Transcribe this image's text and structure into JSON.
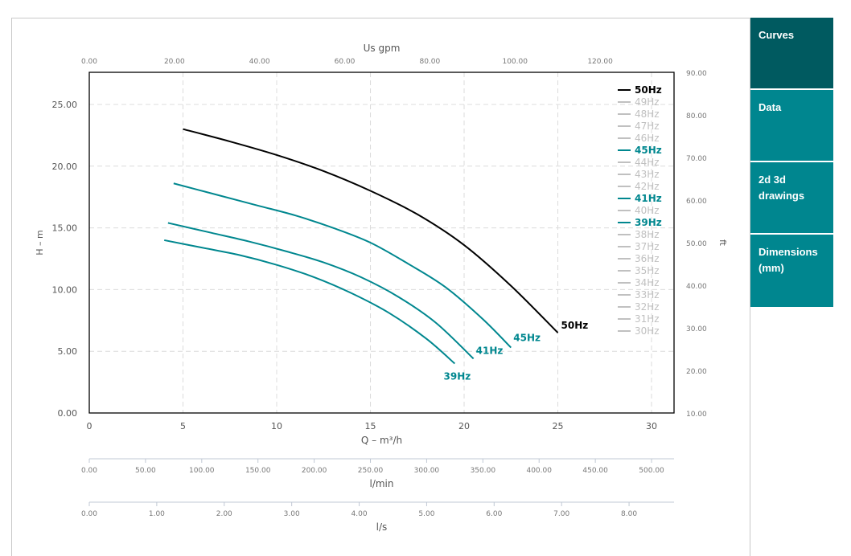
{
  "sidebar": {
    "tabs": [
      {
        "label": "Curves",
        "active": true
      },
      {
        "label": "Data",
        "active": false
      },
      {
        "label": "2d 3d drawings",
        "active": false
      },
      {
        "label": "Dimensions (mm)",
        "active": false
      }
    ]
  },
  "colors": {
    "active_curve": "#000000",
    "secondary_curve": "#00878f",
    "inactive_legend": "#c0c0c0",
    "tab_bg": "#00868f",
    "tab_active_bg": "#005a60"
  },
  "chart_data": {
    "type": "line",
    "xlabel": "Q – m³/h",
    "ylabel": "H – m",
    "xlim": [
      0,
      31.2
    ],
    "ylim": [
      0,
      27.6
    ],
    "x_ticks": [
      0,
      5,
      10,
      15,
      20,
      25,
      30
    ],
    "x_tick_labels": [
      "0",
      "5",
      "10",
      "15",
      "20",
      "25",
      "30"
    ],
    "y_ticks": [
      0,
      5,
      10,
      15,
      20,
      25
    ],
    "y_tick_labels": [
      "0.00",
      "5.00",
      "10.00",
      "15.00",
      "20.00",
      "25.00"
    ],
    "grid": true,
    "legend_position": "top-right",
    "secondary_axes": {
      "top": {
        "label": "Us gpm",
        "ticks": [
          0,
          20,
          40,
          60,
          80,
          100,
          120
        ],
        "tick_labels": [
          "0.00",
          "20.00",
          "40.00",
          "60.00",
          "80.00",
          "100.00",
          "120.00"
        ]
      },
      "right": {
        "label": "ft",
        "ticks": [
          10,
          20,
          30,
          40,
          50,
          60,
          70,
          80,
          90
        ],
        "tick_labels": [
          "10.00",
          "20.00",
          "30.00",
          "40.00",
          "50.00",
          "60.00",
          "70.00",
          "80.00",
          "90.00"
        ]
      },
      "lpm": {
        "label": "l/min",
        "ticks": [
          0,
          50,
          100,
          150,
          200,
          250,
          300,
          350,
          400,
          450,
          500
        ],
        "tick_labels": [
          "0.00",
          "50.00",
          "100.00",
          "150.00",
          "200.00",
          "250.00",
          "300.00",
          "350.00",
          "400.00",
          "450.00",
          "500.00"
        ]
      },
      "lps": {
        "label": "l/s",
        "ticks": [
          0,
          1,
          2,
          3,
          4,
          5,
          6,
          7,
          8
        ],
        "tick_labels": [
          "0.00",
          "1.00",
          "2.00",
          "3.00",
          "4.00",
          "5.00",
          "6.00",
          "7.00",
          "8.00"
        ]
      }
    },
    "series": [
      {
        "name": "50Hz",
        "color": "#000000",
        "end_label": "50Hz",
        "points": [
          [
            5.0,
            23.0
          ],
          [
            7.5,
            22.0
          ],
          [
            10.0,
            20.9
          ],
          [
            12.5,
            19.6
          ],
          [
            15.0,
            18.0
          ],
          [
            17.5,
            16.1
          ],
          [
            20.0,
            13.6
          ],
          [
            22.5,
            10.3
          ],
          [
            25.0,
            6.5
          ]
        ]
      },
      {
        "name": "45Hz",
        "color": "#00878f",
        "end_label": "45Hz",
        "points": [
          [
            4.5,
            18.6
          ],
          [
            7.0,
            17.6
          ],
          [
            9.0,
            16.8
          ],
          [
            11.0,
            16.0
          ],
          [
            13.0,
            15.0
          ],
          [
            15.0,
            13.8
          ],
          [
            17.0,
            12.1
          ],
          [
            19.0,
            10.2
          ],
          [
            21.0,
            7.6
          ],
          [
            22.5,
            5.3
          ]
        ]
      },
      {
        "name": "41Hz",
        "color": "#00878f",
        "end_label": "41Hz",
        "points": [
          [
            4.2,
            15.4
          ],
          [
            6.5,
            14.6
          ],
          [
            8.5,
            13.9
          ],
          [
            10.5,
            13.1
          ],
          [
            12.5,
            12.2
          ],
          [
            14.5,
            11.0
          ],
          [
            16.5,
            9.4
          ],
          [
            18.5,
            7.3
          ],
          [
            20.5,
            4.4
          ]
        ]
      },
      {
        "name": "39Hz",
        "color": "#00878f",
        "end_label": "39Hz",
        "points": [
          [
            4.0,
            14.0
          ],
          [
            6.0,
            13.4
          ],
          [
            8.0,
            12.8
          ],
          [
            10.0,
            12.0
          ],
          [
            12.0,
            11.0
          ],
          [
            14.0,
            9.7
          ],
          [
            16.0,
            8.1
          ],
          [
            18.0,
            6.0
          ],
          [
            19.5,
            4.0
          ]
        ]
      }
    ],
    "legend": [
      {
        "label": "50Hz",
        "state": "active"
      },
      {
        "label": "49Hz",
        "state": "inactive"
      },
      {
        "label": "48Hz",
        "state": "inactive"
      },
      {
        "label": "47Hz",
        "state": "inactive"
      },
      {
        "label": "46Hz",
        "state": "inactive"
      },
      {
        "label": "45Hz",
        "state": "secondary"
      },
      {
        "label": "44Hz",
        "state": "inactive"
      },
      {
        "label": "43Hz",
        "state": "inactive"
      },
      {
        "label": "42Hz",
        "state": "inactive"
      },
      {
        "label": "41Hz",
        "state": "secondary"
      },
      {
        "label": "40Hz",
        "state": "inactive"
      },
      {
        "label": "39Hz",
        "state": "secondary"
      },
      {
        "label": "38Hz",
        "state": "inactive"
      },
      {
        "label": "37Hz",
        "state": "inactive"
      },
      {
        "label": "36Hz",
        "state": "inactive"
      },
      {
        "label": "35Hz",
        "state": "inactive"
      },
      {
        "label": "34Hz",
        "state": "inactive"
      },
      {
        "label": "33Hz",
        "state": "inactive"
      },
      {
        "label": "32Hz",
        "state": "inactive"
      },
      {
        "label": "31Hz",
        "state": "inactive"
      },
      {
        "label": "30Hz",
        "state": "inactive"
      }
    ]
  }
}
